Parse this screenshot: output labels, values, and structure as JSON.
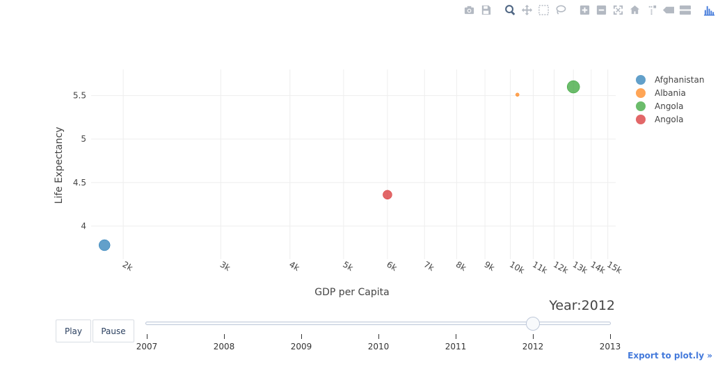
{
  "modebar": {
    "colors": {
      "icon": "#b3b9c2",
      "icon_active": "#506784",
      "logo": "#447adb"
    },
    "buttons": [
      {
        "name": "camera-icon",
        "active": false
      },
      {
        "name": "save-icon",
        "active": false
      },
      {
        "name": "gap"
      },
      {
        "name": "zoom-icon",
        "active": true
      },
      {
        "name": "pan-icon",
        "active": false
      },
      {
        "name": "box-select-icon",
        "active": false
      },
      {
        "name": "lasso-icon",
        "active": false
      },
      {
        "name": "gap"
      },
      {
        "name": "zoom-in-icon",
        "active": false
      },
      {
        "name": "zoom-out-icon",
        "active": false
      },
      {
        "name": "autoscale-icon",
        "active": false
      },
      {
        "name": "reset-axes-icon",
        "active": false
      },
      {
        "name": "spike-lines-icon",
        "active": false
      },
      {
        "name": "hover-closest-icon",
        "active": false
      },
      {
        "name": "hover-compare-icon",
        "active": false
      },
      {
        "name": "gap"
      },
      {
        "name": "plotly-logo-icon",
        "active": false
      }
    ]
  },
  "chart_data": {
    "type": "scatter",
    "xlabel": "GDP per Capita",
    "ylabel": "Life Expectancy",
    "xscale": "log",
    "xlim": [
      1750,
      15500
    ],
    "ylim": [
      3.62,
      5.8
    ],
    "grid": true,
    "legend_position": "right",
    "xticks": [
      {
        "value": 2000,
        "label": "2k"
      },
      {
        "value": 3000,
        "label": "3k"
      },
      {
        "value": 4000,
        "label": "4k"
      },
      {
        "value": 5000,
        "label": "5k"
      },
      {
        "value": 6000,
        "label": "6k"
      },
      {
        "value": 7000,
        "label": "7k"
      },
      {
        "value": 8000,
        "label": "8k"
      },
      {
        "value": 9000,
        "label": "9k"
      },
      {
        "value": 10000,
        "label": "10k"
      },
      {
        "value": 11000,
        "label": "11k"
      },
      {
        "value": 12000,
        "label": "12k"
      },
      {
        "value": 13000,
        "label": "13k"
      },
      {
        "value": 14000,
        "label": "14k"
      },
      {
        "value": 15000,
        "label": "15k"
      }
    ],
    "yticks": [
      {
        "value": 4,
        "label": "4"
      },
      {
        "value": 4.5,
        "label": "4.5"
      },
      {
        "value": 5,
        "label": "5"
      },
      {
        "value": 5.5,
        "label": "5.5"
      }
    ],
    "series": [
      {
        "name": "Afghanistan",
        "color": "#1f77b4",
        "x": [
          1850
        ],
        "y": [
          3.78
        ],
        "size": 16
      },
      {
        "name": "Albania",
        "color": "#ff7f0e",
        "x": [
          10300
        ],
        "y": [
          5.51
        ],
        "size": 5
      },
      {
        "name": "Angola",
        "color": "#2ca02c",
        "x": [
          13000
        ],
        "y": [
          5.6
        ],
        "size": 18
      },
      {
        "name": "Angola",
        "color": "#d62728",
        "x": [
          6000
        ],
        "y": [
          4.36
        ],
        "size": 13
      }
    ]
  },
  "animation": {
    "play_label": "Play",
    "pause_label": "Pause",
    "slider": {
      "prefix": "Year:",
      "current": "2012",
      "current_index": 5,
      "steps": [
        "2007",
        "2008",
        "2009",
        "2010",
        "2011",
        "2012",
        "2013"
      ]
    }
  },
  "export_link": "Export to plot.ly »"
}
